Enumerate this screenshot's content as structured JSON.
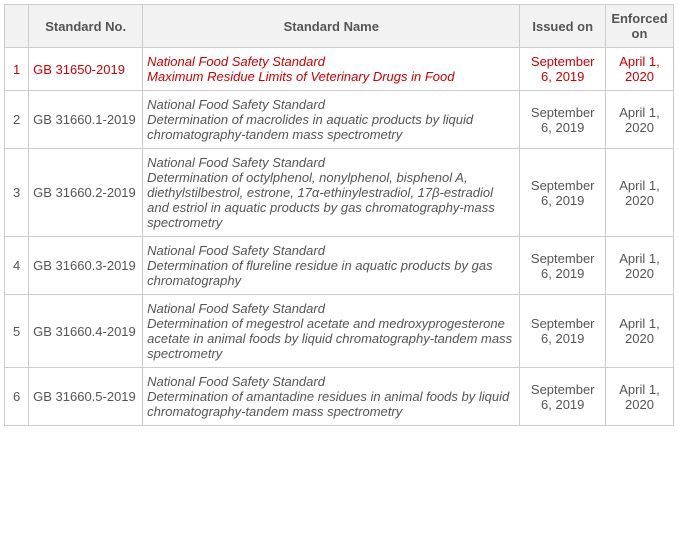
{
  "columns": {
    "index": "",
    "standard_no": "Standard No.",
    "standard_name": "Standard Name",
    "issued_on": "Issued on",
    "enforced_on": "Enforced on"
  },
  "header_bg": "#f2f2f2",
  "border_color": "#cccccc",
  "text_color": "#555555",
  "highlight_color": "#cc0000",
  "rows": [
    {
      "index": "1",
      "standard_no": "GB 31650-2019",
      "title": "National Food Safety Standard",
      "desc": "Maximum Residue Limits of Veterinary Drugs in Food",
      "issued_on": "September 6, 2019",
      "enforced_on": "April 1, 2020",
      "highlight": true
    },
    {
      "index": "2",
      "standard_no": "GB 31660.1-2019",
      "title": "National Food Safety Standard",
      "desc": "Determination of macrolides in aquatic products by liquid chromatography-tandem mass spectrometry",
      "issued_on": "September 6, 2019",
      "enforced_on": "April 1, 2020",
      "highlight": false
    },
    {
      "index": "3",
      "standard_no": "GB 31660.2-2019",
      "title": "National Food Safety Standard",
      "desc": "Determination of octylphenol, nonylphenol, bisphenol A, diethylstilbestrol, estrone, 17α-ethinylestradiol, 17β-estradiol and estriol in aquatic products by gas chromatography-mass spectrometry",
      "issued_on": "September 6, 2019",
      "enforced_on": "April 1, 2020",
      "highlight": false
    },
    {
      "index": "4",
      "standard_no": "GB 31660.3-2019",
      "title": "National Food Safety Standard",
      "desc": "Determination of flureline residue in aquatic products by gas chromatography",
      "issued_on": "September 6, 2019",
      "enforced_on": "April 1, 2020",
      "highlight": false
    },
    {
      "index": "5",
      "standard_no": "GB 31660.4-2019",
      "title": "National Food Safety Standard",
      "desc": "Determination of megestrol acetate and medroxyprogesterone acetate in animal foods by liquid chromatography-tandem mass spectrometry",
      "issued_on": "September 6, 2019",
      "enforced_on": "April 1, 2020",
      "highlight": false
    },
    {
      "index": "6",
      "standard_no": "GB 31660.5-2019",
      "title": "National Food Safety Standard",
      "desc": "Determination of amantadine residues in animal foods by liquid chromatography-tandem mass spectrometry",
      "issued_on": "September 6, 2019",
      "enforced_on": "April 1, 2020",
      "highlight": false
    }
  ]
}
